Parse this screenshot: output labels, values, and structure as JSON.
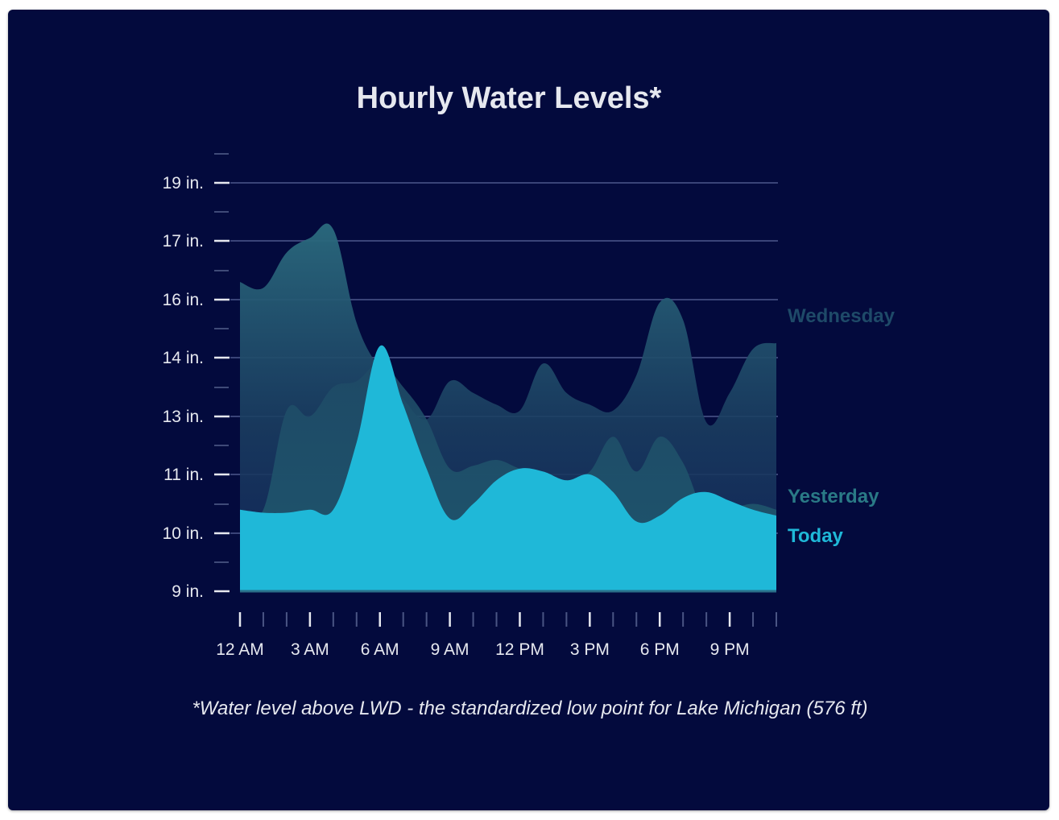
{
  "chart_data": {
    "type": "area",
    "title": "Hourly Water Levels*",
    "footnote": "*Water level above LWD - the standardized low point for Lake Michigan (576 ft)",
    "x": [
      "12 AM",
      "1 AM",
      "2 AM",
      "3 AM",
      "4 AM",
      "5 AM",
      "6 AM",
      "7 AM",
      "8 AM",
      "9 AM",
      "10 AM",
      "11 AM",
      "12 PM",
      "1 PM",
      "2 PM",
      "3 PM",
      "4 PM",
      "5 PM",
      "6 PM",
      "7 PM",
      "8 PM",
      "9 PM",
      "10 PM",
      "11 PM"
    ],
    "xtick_labels": [
      "12 AM",
      "3 AM",
      "6 AM",
      "9 AM",
      "12 PM",
      "3 PM",
      "6 PM",
      "9 PM"
    ],
    "yticks": [
      9,
      10,
      11,
      13,
      14,
      16,
      17,
      19
    ],
    "ytick_labels": [
      "9 in.",
      "10 in.",
      "11 in.",
      "13 in.",
      "14 in.",
      "16 in.",
      "17 in.",
      "19 in."
    ],
    "ylim": [
      9,
      19.5
    ],
    "grid": true,
    "legend": "right, labels at series ends",
    "series": [
      {
        "name": "Wednesday",
        "color": "#1e4a68",
        "values": [
          16.3,
          16.2,
          16.8,
          17.1,
          17.4,
          15.2,
          13.8,
          13.3,
          12.9,
          13.6,
          13.4,
          13.2,
          13.1,
          13.9,
          13.4,
          13.2,
          13.1,
          13.7,
          15.9,
          15.3,
          12.8,
          13.4,
          14.3,
          14.5
        ]
      },
      {
        "name": "Yesterday",
        "color": "#2a7a86",
        "values": [
          10.4,
          10.4,
          13.1,
          13.0,
          13.5,
          13.6,
          13.9,
          13.5,
          12.9,
          11.2,
          11.3,
          11.5,
          11.2,
          11.0,
          10.9,
          11.1,
          12.3,
          11.1,
          12.3,
          11.4,
          10.3,
          10.4,
          10.5,
          10.4
        ]
      },
      {
        "name": "Today",
        "color": "#1fb8d8",
        "values": [
          10.4,
          10.35,
          10.35,
          10.4,
          10.4,
          12.1,
          14.4,
          13.2,
          11.2,
          10.25,
          10.5,
          10.9,
          11.2,
          11.1,
          10.9,
          11.0,
          10.7,
          10.2,
          10.3,
          10.6,
          10.7,
          10.55,
          10.4,
          10.3
        ]
      }
    ]
  }
}
